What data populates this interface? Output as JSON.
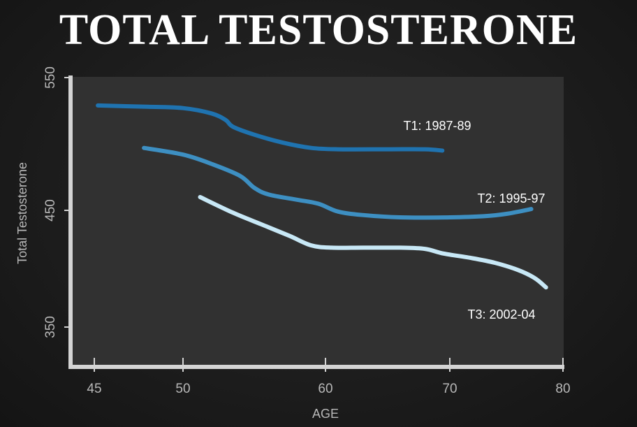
{
  "chart_data": {
    "type": "line",
    "title": "TOTAL TESTOSTERONE",
    "xlabel": "AGE",
    "ylabel": "Total Testosterone",
    "xlim": [
      45,
      80
    ],
    "ylim": [
      325,
      555
    ],
    "x_ticks": [
      45,
      50,
      60,
      70,
      80
    ],
    "y_ticks": [
      350,
      450,
      550
    ],
    "grid": false,
    "series": [
      {
        "name": "T1: 1987-89",
        "color": "#1f73b0",
        "points": [
          [
            45.2,
            529
          ],
          [
            48,
            528
          ],
          [
            50,
            527
          ],
          [
            52,
            523
          ],
          [
            53,
            518
          ],
          [
            53.5,
            513
          ],
          [
            55,
            507
          ],
          [
            57,
            501
          ],
          [
            59,
            497
          ],
          [
            61,
            496
          ],
          [
            65,
            496
          ],
          [
            68,
            496
          ],
          [
            69.4,
            495
          ]
        ]
      },
      {
        "name": "T2: 1995-97",
        "color": "#3d8fc2",
        "points": [
          [
            47.8,
            497
          ],
          [
            50,
            492
          ],
          [
            52,
            485
          ],
          [
            54,
            476
          ],
          [
            55,
            467
          ],
          [
            56,
            462
          ],
          [
            58,
            458
          ],
          [
            59.5,
            455
          ],
          [
            61,
            449
          ],
          [
            63,
            446
          ],
          [
            66,
            444
          ],
          [
            70,
            444
          ],
          [
            73,
            445
          ],
          [
            75,
            447
          ],
          [
            77.2,
            451
          ]
        ]
      },
      {
        "name": "T3: 2002-04",
        "color": "#c8e8f6",
        "points": [
          [
            51.2,
            460
          ],
          [
            53.5,
            448
          ],
          [
            55.5,
            438
          ],
          [
            57.5,
            428
          ],
          [
            59,
            420
          ],
          [
            60.5,
            418
          ],
          [
            63,
            418
          ],
          [
            66,
            418
          ],
          [
            68,
            417
          ],
          [
            69.5,
            413
          ],
          [
            72,
            409
          ],
          [
            74,
            405
          ],
          [
            76,
            399
          ],
          [
            77.5,
            392
          ],
          [
            78.5,
            384
          ]
        ]
      }
    ]
  }
}
